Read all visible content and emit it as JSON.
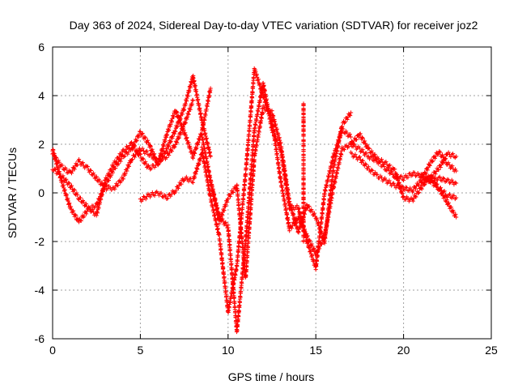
{
  "chart_data": {
    "type": "scatter",
    "title": "Day 363 of 2024, Sidereal Day-to-day VTEC variation (SDTVAR) for receiver joz2",
    "xlabel": "GPS time / hours",
    "ylabel": "SDTVAR / TECUs",
    "xlim": [
      0,
      25
    ],
    "ylim": [
      -6,
      6
    ],
    "x_ticks": [
      0,
      5,
      10,
      15,
      20,
      25
    ],
    "y_ticks": [
      -6,
      -4,
      -2,
      0,
      2,
      4,
      6
    ],
    "grid": true,
    "marker": "+",
    "series": [
      {
        "name": "SDTVAR",
        "color": "#ff0000",
        "tracks": [
          {
            "x": [
              0.0,
              0.5,
              1.0,
              1.5,
              2.0,
              2.5,
              3.0,
              3.5,
              4.0,
              4.5,
              5.0,
              5.5,
              6.0,
              6.5,
              7.0,
              7.5,
              8.0
            ],
            "y": [
              1.6,
              1.1,
              0.8,
              1.3,
              1.0,
              0.6,
              0.2,
              0.2,
              0.6,
              1.4,
              1.8,
              1.6,
              1.3,
              1.5,
              2.0,
              2.8,
              3.8
            ]
          },
          {
            "x": [
              0.0,
              0.5,
              1.0,
              1.5,
              2.0,
              2.5,
              3.0,
              3.5,
              4.0,
              4.5,
              5.0,
              5.5,
              6.0,
              6.5,
              7.0,
              7.5,
              8.0,
              8.5,
              9.0
            ],
            "y": [
              1.8,
              0.5,
              -0.6,
              -1.2,
              -0.7,
              -0.5,
              0.3,
              1.0,
              1.5,
              1.8,
              2.5,
              2.0,
              1.2,
              1.8,
              2.6,
              3.5,
              4.8,
              3.0,
              1.5
            ]
          },
          {
            "x": [
              0.0,
              0.5,
              1.0,
              1.5,
              2.0,
              2.5,
              3.0,
              3.5,
              4.0,
              4.5,
              5.0,
              5.5,
              6.0,
              6.5,
              7.0,
              7.5,
              8.0,
              8.5,
              9.0
            ],
            "y": [
              1.0,
              0.7,
              0.3,
              -0.2,
              -0.6,
              -0.9,
              0.5,
              1.2,
              1.7,
              2.0,
              1.5,
              1.0,
              1.2,
              2.4,
              3.4,
              2.5,
              1.5,
              2.5,
              4.3
            ]
          },
          {
            "x": [
              5.0,
              5.5,
              6.0,
              6.5,
              7.0,
              7.5,
              8.0,
              8.5
            ],
            "y": [
              -0.3,
              -0.1,
              0.0,
              -0.2,
              0.1,
              0.6,
              0.5,
              1.6
            ]
          },
          {
            "x": [
              8.5,
              9.0,
              9.5,
              10.0,
              10.5,
              11.0,
              11.5,
              12.0,
              12.5,
              13.0,
              13.5,
              14.0,
              14.5,
              15.0,
              15.5,
              16.0,
              16.5,
              17.0
            ],
            "y": [
              1.8,
              -0.2,
              -1.8,
              -4.9,
              -3.0,
              0.8,
              5.1,
              4.0,
              3.0,
              0.5,
              -1.5,
              -1.0,
              -1.8,
              -2.5,
              -1.8,
              0.2,
              1.8,
              2.0
            ]
          },
          {
            "x": [
              8.5,
              9.0,
              9.5,
              10.0,
              10.5,
              11.0,
              11.5,
              12.0,
              12.5,
              13.0,
              13.5,
              14.0,
              14.5,
              15.0,
              15.5,
              16.0,
              16.5,
              17.0
            ],
            "y": [
              2.4,
              0.5,
              -1.0,
              -1.4,
              -5.7,
              -2.0,
              2.6,
              4.5,
              2.6,
              1.8,
              -0.6,
              -0.6,
              -2.0,
              -3.1,
              0.0,
              1.5,
              2.6,
              2.3
            ]
          },
          {
            "x": [
              9.0,
              9.5,
              10.0,
              10.5,
              11.0,
              11.5,
              12.0,
              12.5,
              13.0,
              13.5,
              14.0,
              14.5,
              15.0,
              15.5,
              16.0,
              16.5,
              17.0
            ],
            "y": [
              0.5,
              -1.2,
              -0.2,
              0.3,
              -3.5,
              1.5,
              3.5,
              3.3,
              2.0,
              -0.4,
              -1.6,
              -0.5,
              -1.0,
              -2.0,
              1.0,
              2.8,
              3.3
            ]
          },
          {
            "x": [
              14.3,
              14.3,
              14.3,
              14.3,
              14.3,
              14.3,
              14.3,
              14.3,
              14.3
            ],
            "y": [
              3.7,
              3.0,
              2.2,
              1.4,
              0.6,
              -0.2,
              -1.0,
              -1.6,
              -2.0
            ]
          },
          {
            "x": [
              17.0,
              17.5,
              18.0,
              18.5,
              19.0,
              19.5,
              20.0,
              20.5,
              21.0,
              21.5,
              22.0,
              22.5,
              23.0
            ],
            "y": [
              2.0,
              1.8,
              1.5,
              1.3,
              1.0,
              0.7,
              0.6,
              0.8,
              0.7,
              0.5,
              0.6,
              0.5,
              0.4
            ]
          },
          {
            "x": [
              17.0,
              17.5,
              18.0,
              18.5,
              19.0,
              19.5,
              20.0,
              20.5,
              21.0,
              21.5,
              22.0,
              22.5,
              23.0
            ],
            "y": [
              1.6,
              1.4,
              1.0,
              0.7,
              0.5,
              0.3,
              0.2,
              0.1,
              0.5,
              1.2,
              1.7,
              1.2,
              0.9
            ]
          },
          {
            "x": [
              17.0,
              17.5,
              18.0,
              18.5,
              19.0,
              19.5,
              20.0,
              20.5,
              21.0,
              21.5,
              22.0,
              22.5,
              23.0
            ],
            "y": [
              2.0,
              2.4,
              1.8,
              1.4,
              1.2,
              0.9,
              -0.2,
              -0.3,
              0.2,
              0.7,
              0.2,
              -0.4,
              -1.0
            ]
          },
          {
            "x": [
              21.0,
              21.5,
              22.0,
              22.5,
              23.0
            ],
            "y": [
              0.4,
              0.6,
              1.0,
              1.6,
              1.5
            ]
          },
          {
            "x": [
              21.0,
              21.5,
              22.0,
              22.5,
              23.0
            ],
            "y": [
              0.8,
              0.5,
              0.2,
              -0.1,
              -0.2
            ]
          }
        ]
      }
    ]
  }
}
